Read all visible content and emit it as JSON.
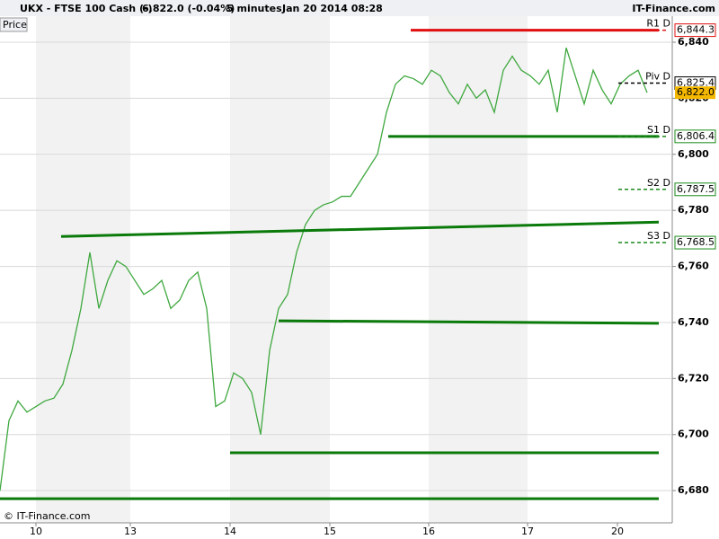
{
  "header": {
    "symbol": "UKX - FTSE 100 Cash (-)",
    "quote": "6,822.0 (-0.04%)",
    "interval": "5 minutes",
    "datetime": "Jan 20 2014 08:28",
    "brand": "IT-Finance.com"
  },
  "footer": "© IT-Finance.com",
  "chart_data": {
    "type": "line",
    "panel_label": "Price",
    "x": [
      0,
      1,
      2,
      3,
      4,
      5,
      6,
      7,
      8,
      9,
      10,
      11,
      12,
      13,
      14,
      15,
      16,
      17,
      18,
      19,
      20,
      21,
      22,
      23,
      24,
      25,
      26,
      27,
      28,
      29,
      30,
      31,
      32,
      33,
      34,
      35,
      36,
      37,
      38,
      39,
      40,
      41,
      42,
      43,
      44,
      45,
      46,
      47,
      48,
      49,
      50,
      51,
      52,
      53,
      54,
      55,
      56,
      57,
      58,
      59,
      60,
      61,
      62,
      63,
      64,
      65,
      66,
      67,
      68,
      69,
      70,
      71,
      72
    ],
    "series": [
      {
        "color": "#3fa83f",
        "values": [
          6680,
          6705,
          6712,
          6708,
          6710,
          6712,
          6713,
          6718,
          6730,
          6745,
          6765,
          6745,
          6755,
          6762,
          6760,
          6755,
          6750,
          6752,
          6755,
          6745,
          6748,
          6755,
          6758,
          6745,
          6710,
          6712,
          6722,
          6720,
          6715,
          6700,
          6730,
          6745,
          6750,
          6765,
          6775,
          6780,
          6782,
          6783,
          6785,
          6785,
          6790,
          6795,
          6800,
          6815,
          6825,
          6828,
          6827,
          6825,
          6830,
          6828,
          6822,
          6818,
          6825,
          6820,
          6823,
          6815,
          6830,
          6835,
          6830,
          6828,
          6825,
          6830,
          6815,
          6838,
          6828,
          6818,
          6830,
          6823,
          6818,
          6825,
          6828,
          6830,
          6822
        ]
      }
    ],
    "xlim": [
      0,
      74.8
    ],
    "ylim": [
      6668.5,
      6849.3
    ],
    "xticks": [
      {
        "value": 4,
        "label": "10"
      },
      {
        "value": 14.5,
        "label": "13"
      },
      {
        "value": 25.6,
        "label": "14"
      },
      {
        "value": 36.7,
        "label": "15"
      },
      {
        "value": 47.7,
        "label": "16"
      },
      {
        "value": 58.7,
        "label": "17"
      },
      {
        "value": 68.7,
        "label": "20"
      }
    ],
    "yticks": [
      {
        "value": 6680,
        "label": "6,680"
      },
      {
        "value": 6700,
        "label": "6,700"
      },
      {
        "value": 6720,
        "label": "6,720"
      },
      {
        "value": 6740,
        "label": "6,740"
      },
      {
        "value": 6760,
        "label": "6,760"
      },
      {
        "value": 6780,
        "label": "6,780"
      },
      {
        "value": 6800,
        "label": "6,800"
      },
      {
        "value": 6820,
        "label": "6,820"
      },
      {
        "value": 6840,
        "label": "6,840"
      }
    ],
    "pivots": [
      {
        "name": "R1 D",
        "value": 6844.3,
        "label": "6,844.3",
        "color": "#e01010"
      },
      {
        "name": "Piv D",
        "value": 6825.4,
        "label": "6,825.4",
        "color": "#000000"
      },
      {
        "name": "S1 D",
        "value": 6806.4,
        "label": "6,806.4",
        "color": "#1a8a1a"
      },
      {
        "name": "S2 D",
        "value": 6787.5,
        "label": "6,787.5",
        "color": "#1a8a1a"
      },
      {
        "name": "S3 D",
        "value": 6768.5,
        "label": "6,768.5",
        "color": "#1a8a1a"
      }
    ],
    "last": {
      "value": 6822,
      "label": "6,822.0",
      "color": "#f5b800"
    },
    "trendlines": [
      {
        "color": "#e01010",
        "x": [
          45.7,
          73.3
        ],
        "y": [
          6844.3,
          6844.3
        ]
      },
      {
        "color": "#0a7a0a",
        "x": [
          43.2,
          73.3
        ],
        "y": [
          6806.4,
          6806.4
        ]
      },
      {
        "color": "#0a7a0a",
        "x": [
          6.8,
          73.3
        ],
        "y": [
          6770.7,
          6775.8
        ]
      },
      {
        "color": "#0a7a0a",
        "x": [
          31,
          73.3
        ],
        "y": [
          6740.6,
          6739.7
        ]
      },
      {
        "color": "#0a7a0a",
        "x": [
          25.6,
          73.3
        ],
        "y": [
          6693.5,
          6693.5
        ]
      },
      {
        "color": "#0a7a0a",
        "x": [
          0,
          73.3
        ],
        "y": [
          6677.1,
          6677.1
        ]
      }
    ]
  }
}
